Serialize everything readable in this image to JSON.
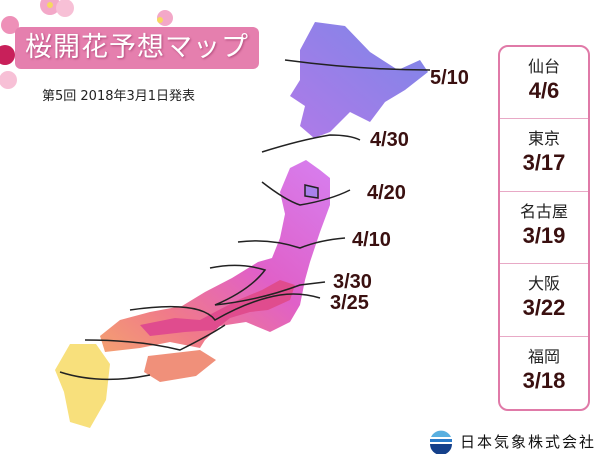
{
  "title": "桜開花予想マップ",
  "subtitle": "第5回 2018年3月1日発表",
  "map_labels": [
    "5/10",
    "4/30",
    "4/20",
    "4/10",
    "3/30",
    "3/25"
  ],
  "cities": [
    {
      "name": "仙台",
      "date": "4/6"
    },
    {
      "name": "東京",
      "date": "3/17"
    },
    {
      "name": "名古屋",
      "date": "3/19"
    },
    {
      "name": "大阪",
      "date": "3/22"
    },
    {
      "name": "福岡",
      "date": "3/18"
    }
  ],
  "company": "日本気象株式会社",
  "colors": {
    "title_bg": "#e57fae",
    "panel_border": "#e07aa8",
    "hokkaido": "#a880ec",
    "tohoku": "#dc7cef",
    "central": "#e04c8e",
    "west": "#f0907a",
    "kyushu": "#f8e07c"
  }
}
